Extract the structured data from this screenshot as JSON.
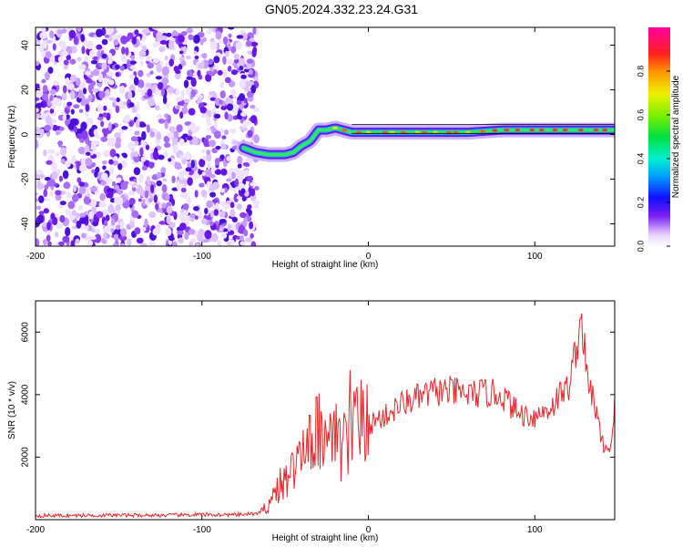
{
  "figure": {
    "title": "GN05.2024.332.23.24.G31"
  },
  "chart_data": [
    {
      "type": "heatmap",
      "xlabel": "Height of straight line (km)",
      "ylabel": "Frequency (Hz)",
      "xlim": [
        -200,
        148
      ],
      "ylim": [
        -50,
        48
      ],
      "xticks": [
        "-200",
        "-100",
        "0",
        "100"
      ],
      "yticks": [
        "-40",
        "-20",
        "0",
        "20",
        "40"
      ],
      "xtick_values": [
        -200,
        -100,
        0,
        100
      ],
      "ytick_values": [
        -40,
        -20,
        0,
        20,
        40
      ],
      "colorbar": {
        "label": "Normalized spectral amplitude",
        "range": [
          0,
          1
        ],
        "ticks": [
          "0.0",
          "0.2",
          "0.4",
          "0.6",
          "0.8"
        ],
        "tick_values": [
          0.0,
          0.2,
          0.4,
          0.6,
          0.8
        ]
      },
      "ridge": {
        "x": [
          -75,
          -68,
          -60,
          -50,
          -45,
          -40,
          -35,
          -30,
          -25,
          -20,
          -15,
          -10,
          0,
          20,
          40,
          60,
          80,
          100,
          120,
          148
        ],
        "y": [
          -6,
          -8,
          -9,
          -9,
          -8,
          -5,
          -3,
          2,
          2,
          3,
          2,
          1,
          1,
          1,
          1,
          1,
          2,
          2,
          2,
          2
        ]
      },
      "noise_region_x": [
        -200,
        -67
      ]
    },
    {
      "type": "line",
      "xlabel": "Height of straight line (km)",
      "ylabel": "SNR (10 * v/v)",
      "xlim": [
        -200,
        148
      ],
      "ylim": [
        0,
        7000
      ],
      "xticks": [
        "-200",
        "-100",
        "0",
        "100"
      ],
      "yticks": [
        "2000",
        "4000",
        "6000"
      ],
      "xtick_values": [
        -200,
        -100,
        0,
        100
      ],
      "ytick_values": [
        2000,
        4000,
        6000
      ],
      "series": [
        {
          "color": "#e8262a",
          "x": [
            -200,
            -180,
            -160,
            -140,
            -120,
            -100,
            -80,
            -65,
            -60,
            -55,
            -50,
            -45,
            -40,
            -35,
            -30,
            -25,
            -20,
            -15,
            -10,
            -5,
            0,
            5,
            10,
            15,
            20,
            30,
            40,
            50,
            60,
            70,
            80,
            90,
            100,
            110,
            115,
            120,
            125,
            128,
            132,
            135,
            140,
            145,
            148
          ],
          "y": [
            130,
            130,
            140,
            140,
            140,
            160,
            150,
            200,
            500,
            1000,
            1200,
            1600,
            2000,
            2200,
            2800,
            2000,
            2500,
            2300,
            2600,
            2900,
            3000,
            3200,
            3300,
            3500,
            3700,
            3900,
            4100,
            4100,
            4000,
            4050,
            4000,
            3400,
            3300,
            3600,
            4000,
            4200,
            5500,
            6500,
            4200,
            4000,
            2500,
            2200,
            3600
          ]
        }
      ]
    }
  ]
}
